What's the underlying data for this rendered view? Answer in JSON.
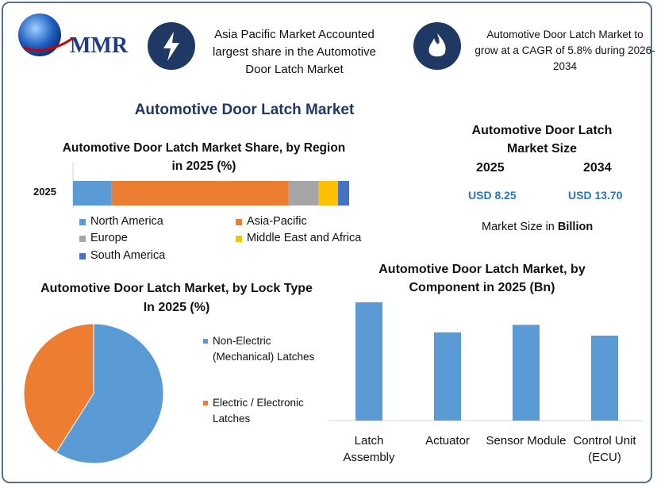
{
  "logo": "MMR",
  "highlights": [
    "Asia Pacific Market Accounted largest share in the Automotive Door Latch Market",
    "Automotive Door Latch Market to grow at a CAGR of 5.8% during 2026-2034"
  ],
  "title": "Automotive Door Latch Market",
  "market_size": {
    "title": "Automotive Door Latch Market Size",
    "years": [
      "2025",
      "2034"
    ],
    "values": [
      "USD 8.25",
      "USD 13.70"
    ],
    "note": "Market Size in",
    "note_unit": "Billion"
  },
  "chart_data": [
    {
      "type": "bar",
      "orientation": "horizontal",
      "stacked": true,
      "title": "Automotive Door Latch Market Share, by Region in 2025 (%)",
      "categories": [
        "2025"
      ],
      "series": [
        {
          "name": "North America",
          "color": "#5b9bd5",
          "values": [
            14
          ]
        },
        {
          "name": "Asia-Pacific",
          "color": "#ed7d31",
          "values": [
            64
          ]
        },
        {
          "name": "Europe",
          "color": "#a5a5a5",
          "values": [
            11
          ]
        },
        {
          "name": "Middle East and Africa",
          "color": "#ffc000",
          "values": [
            7
          ]
        },
        {
          "name": "South America",
          "color": "#4472c4",
          "values": [
            4
          ]
        }
      ]
    },
    {
      "type": "pie",
      "title": "Automotive Door Latch Market, by Lock Type In 2025 (%)",
      "categories": [
        "Non-Electric (Mechanical) Latches",
        "Electric / Electronic Latches"
      ],
      "values": [
        59,
        41
      ],
      "colors": [
        "#5b9bd5",
        "#ed7d31"
      ]
    },
    {
      "type": "bar",
      "title": "Automotive Door Latch Market, by Component in 2025 (Bn)",
      "categories": [
        "Latch Assembly",
        "Actuator",
        "Sensor Module",
        "Control Unit (ECU)"
      ],
      "values": [
        2.52,
        1.88,
        2.04,
        1.81
      ],
      "color": "#5b9bd5"
    }
  ]
}
